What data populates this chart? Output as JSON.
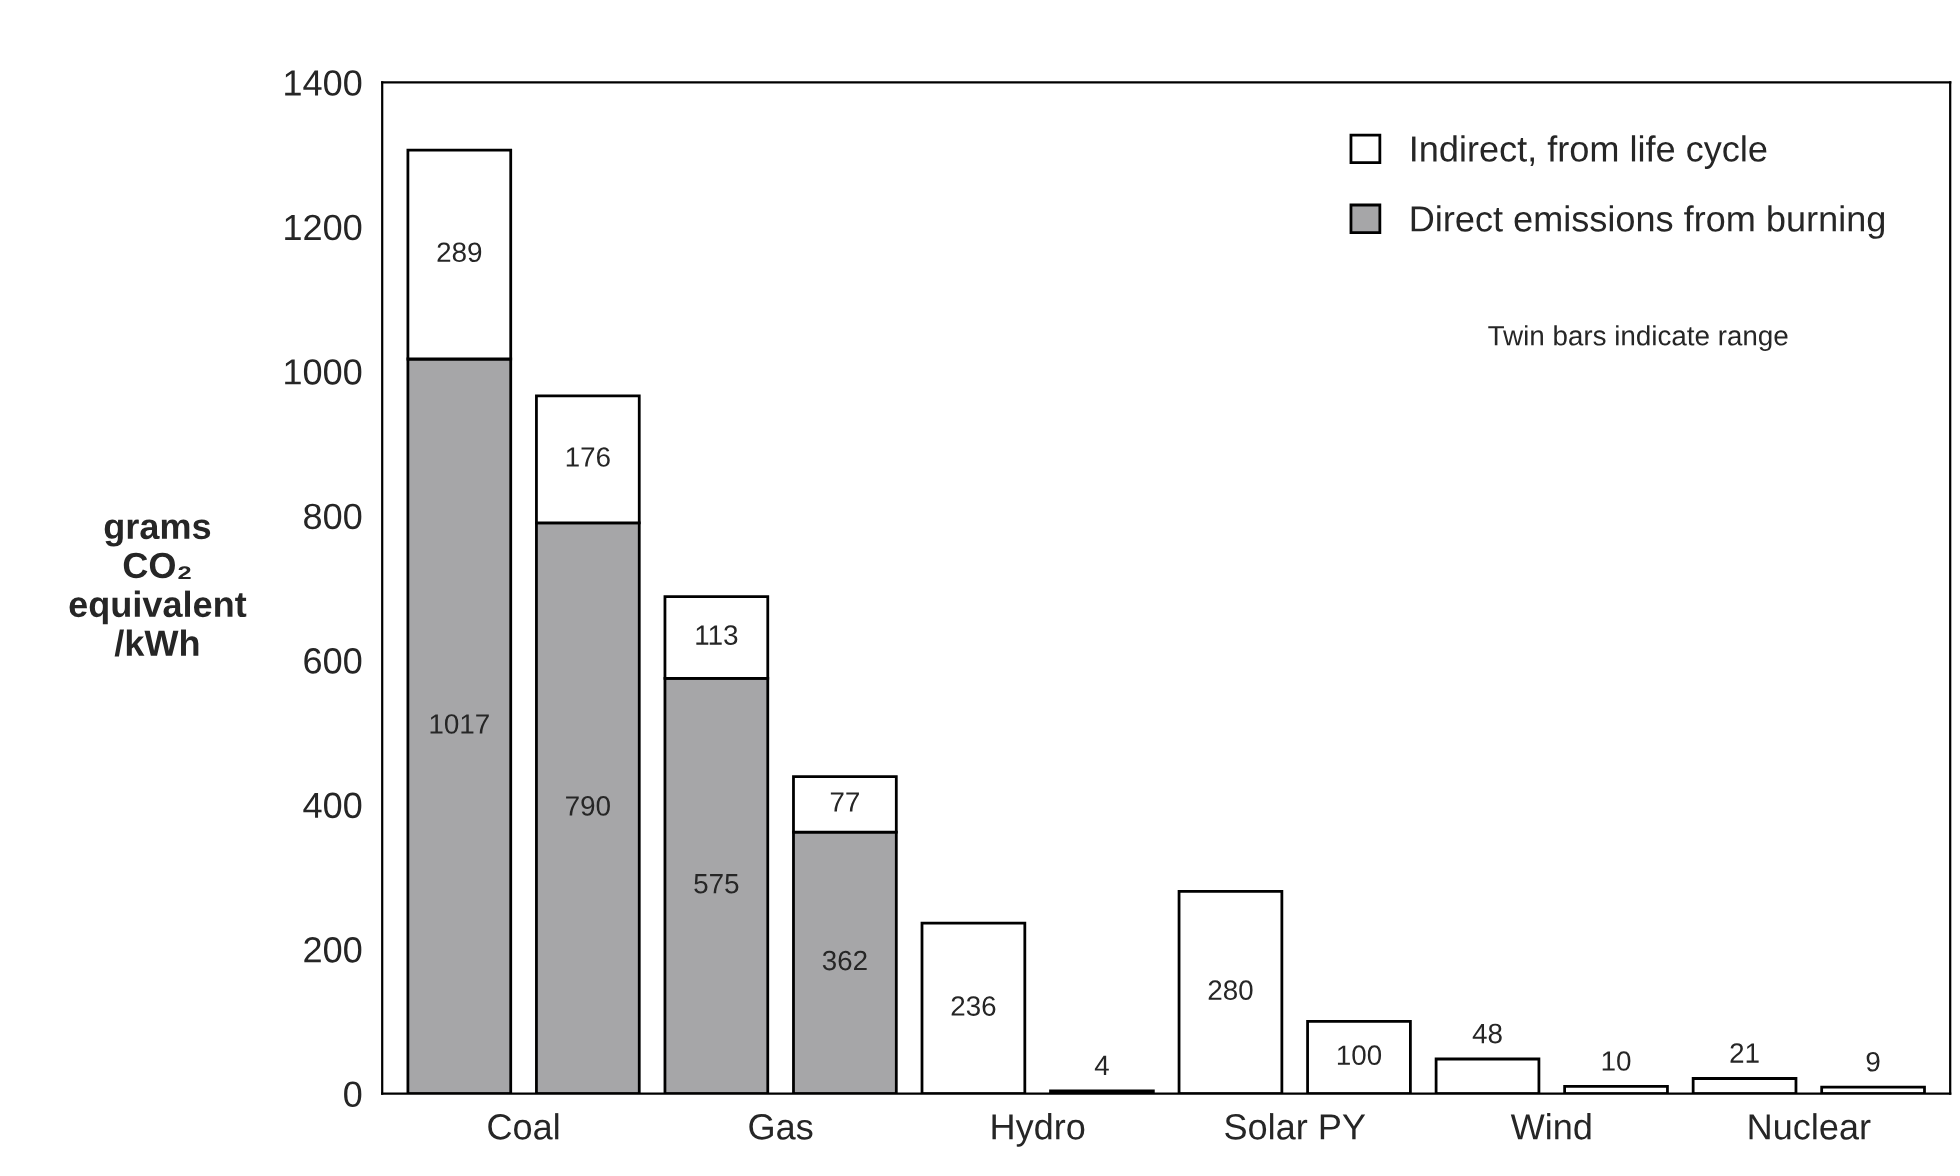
{
  "chart_data": {
    "type": "bar",
    "ylabel": "grams\nCO₂\nequivalent\n/kWh",
    "categories": [
      "Coal",
      null,
      "Gas",
      null,
      "Hydro",
      null,
      "Solar PY",
      null,
      "Wind",
      null,
      "Nuclear",
      null
    ],
    "series": [
      {
        "name": "Direct emissions from burning",
        "color": "#a6a6a8",
        "values": [
          1017,
          790,
          575,
          362,
          null,
          null,
          null,
          null,
          null,
          null,
          null,
          null
        ]
      },
      {
        "name": "Indirect, from life cycle",
        "color": "#ffffff",
        "values": [
          289,
          176,
          113,
          77,
          236,
          4,
          280,
          100,
          48,
          10,
          21,
          9
        ]
      }
    ],
    "stacked": true,
    "data_labels": true,
    "ylim": [
      0,
      1400
    ],
    "yticks": [
      0,
      200,
      400,
      600,
      800,
      1000,
      1200,
      1400
    ],
    "legend": "top right",
    "annotations": [
      "Twin bars indicate range"
    ]
  }
}
